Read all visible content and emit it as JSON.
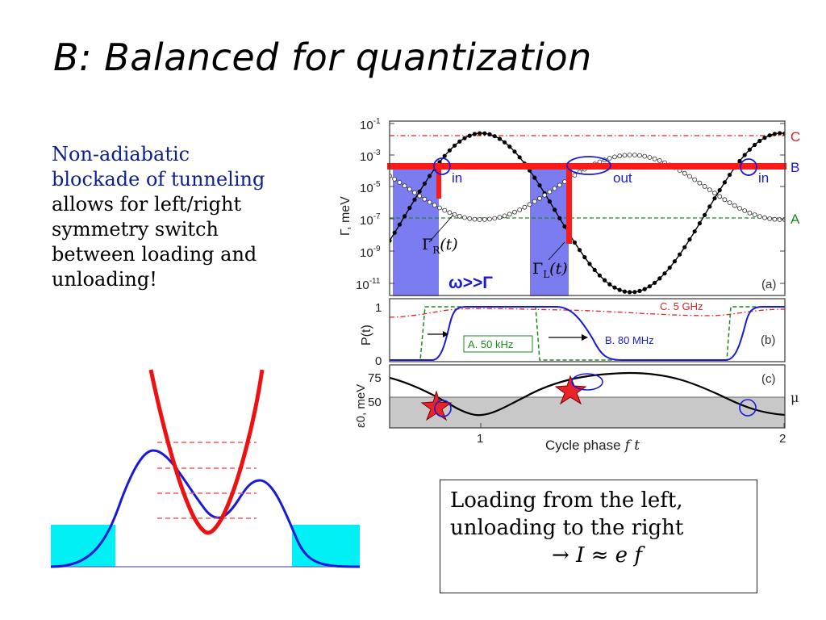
{
  "title": "B: Balanced for quantization",
  "left_text": {
    "highlight": [
      "Non-adiabatic",
      "blockade of tunneling"
    ],
    "lines": [
      "allows for left/right",
      "symmetry switch",
      "between loading and",
      "unloading!"
    ]
  },
  "box": {
    "line1": "Loading from the left,",
    "line2": "unloading to the right",
    "formula": "→ I ≈ e f"
  },
  "panel_a": {
    "ylabel": "Γ, meV",
    "yticks": [
      {
        "base": "10",
        "exp": "-1"
      },
      {
        "base": "10",
        "exp": "-3"
      },
      {
        "base": "10",
        "exp": "-5"
      },
      {
        "base": "10",
        "exp": "-7"
      },
      {
        "base": "10",
        "exp": "-9"
      },
      {
        "base": "10",
        "exp": "-11"
      }
    ],
    "level_labels": {
      "C": "C",
      "B": "B",
      "A": "A"
    },
    "in_left": "in",
    "out": "out",
    "in_right": "in",
    "gamma_r": "Γ",
    "gamma_r_sub": "R",
    "gamma_r_arg": "(t)",
    "gamma_l": "Γ",
    "gamma_l_sub": "L",
    "gamma_l_arg": "(t)",
    "omega": "ω>>Γ",
    "panel_tag": "(a)",
    "colors": {
      "C": "#e02020",
      "B": "#1a1ad6",
      "A": "#1a8a1a",
      "bar": "#ff1a1a",
      "shade": "#7070ee"
    }
  },
  "panel_b": {
    "ylabel": "P(t)",
    "yticks": [
      "1",
      "0"
    ],
    "label_c": "C. 5 GHz",
    "label_a": "A. 50 kHz",
    "label_b": "B. 80 MHz",
    "panel_tag": "(b)"
  },
  "panel_c": {
    "ylabel": "ε0, meV",
    "yticks": [
      "75",
      "50"
    ],
    "mu": "μ",
    "panel_tag": "(c)"
  },
  "xaxis": {
    "ticks": [
      "1",
      "2"
    ],
    "label": "Cycle phase",
    "label_var": "f t"
  }
}
